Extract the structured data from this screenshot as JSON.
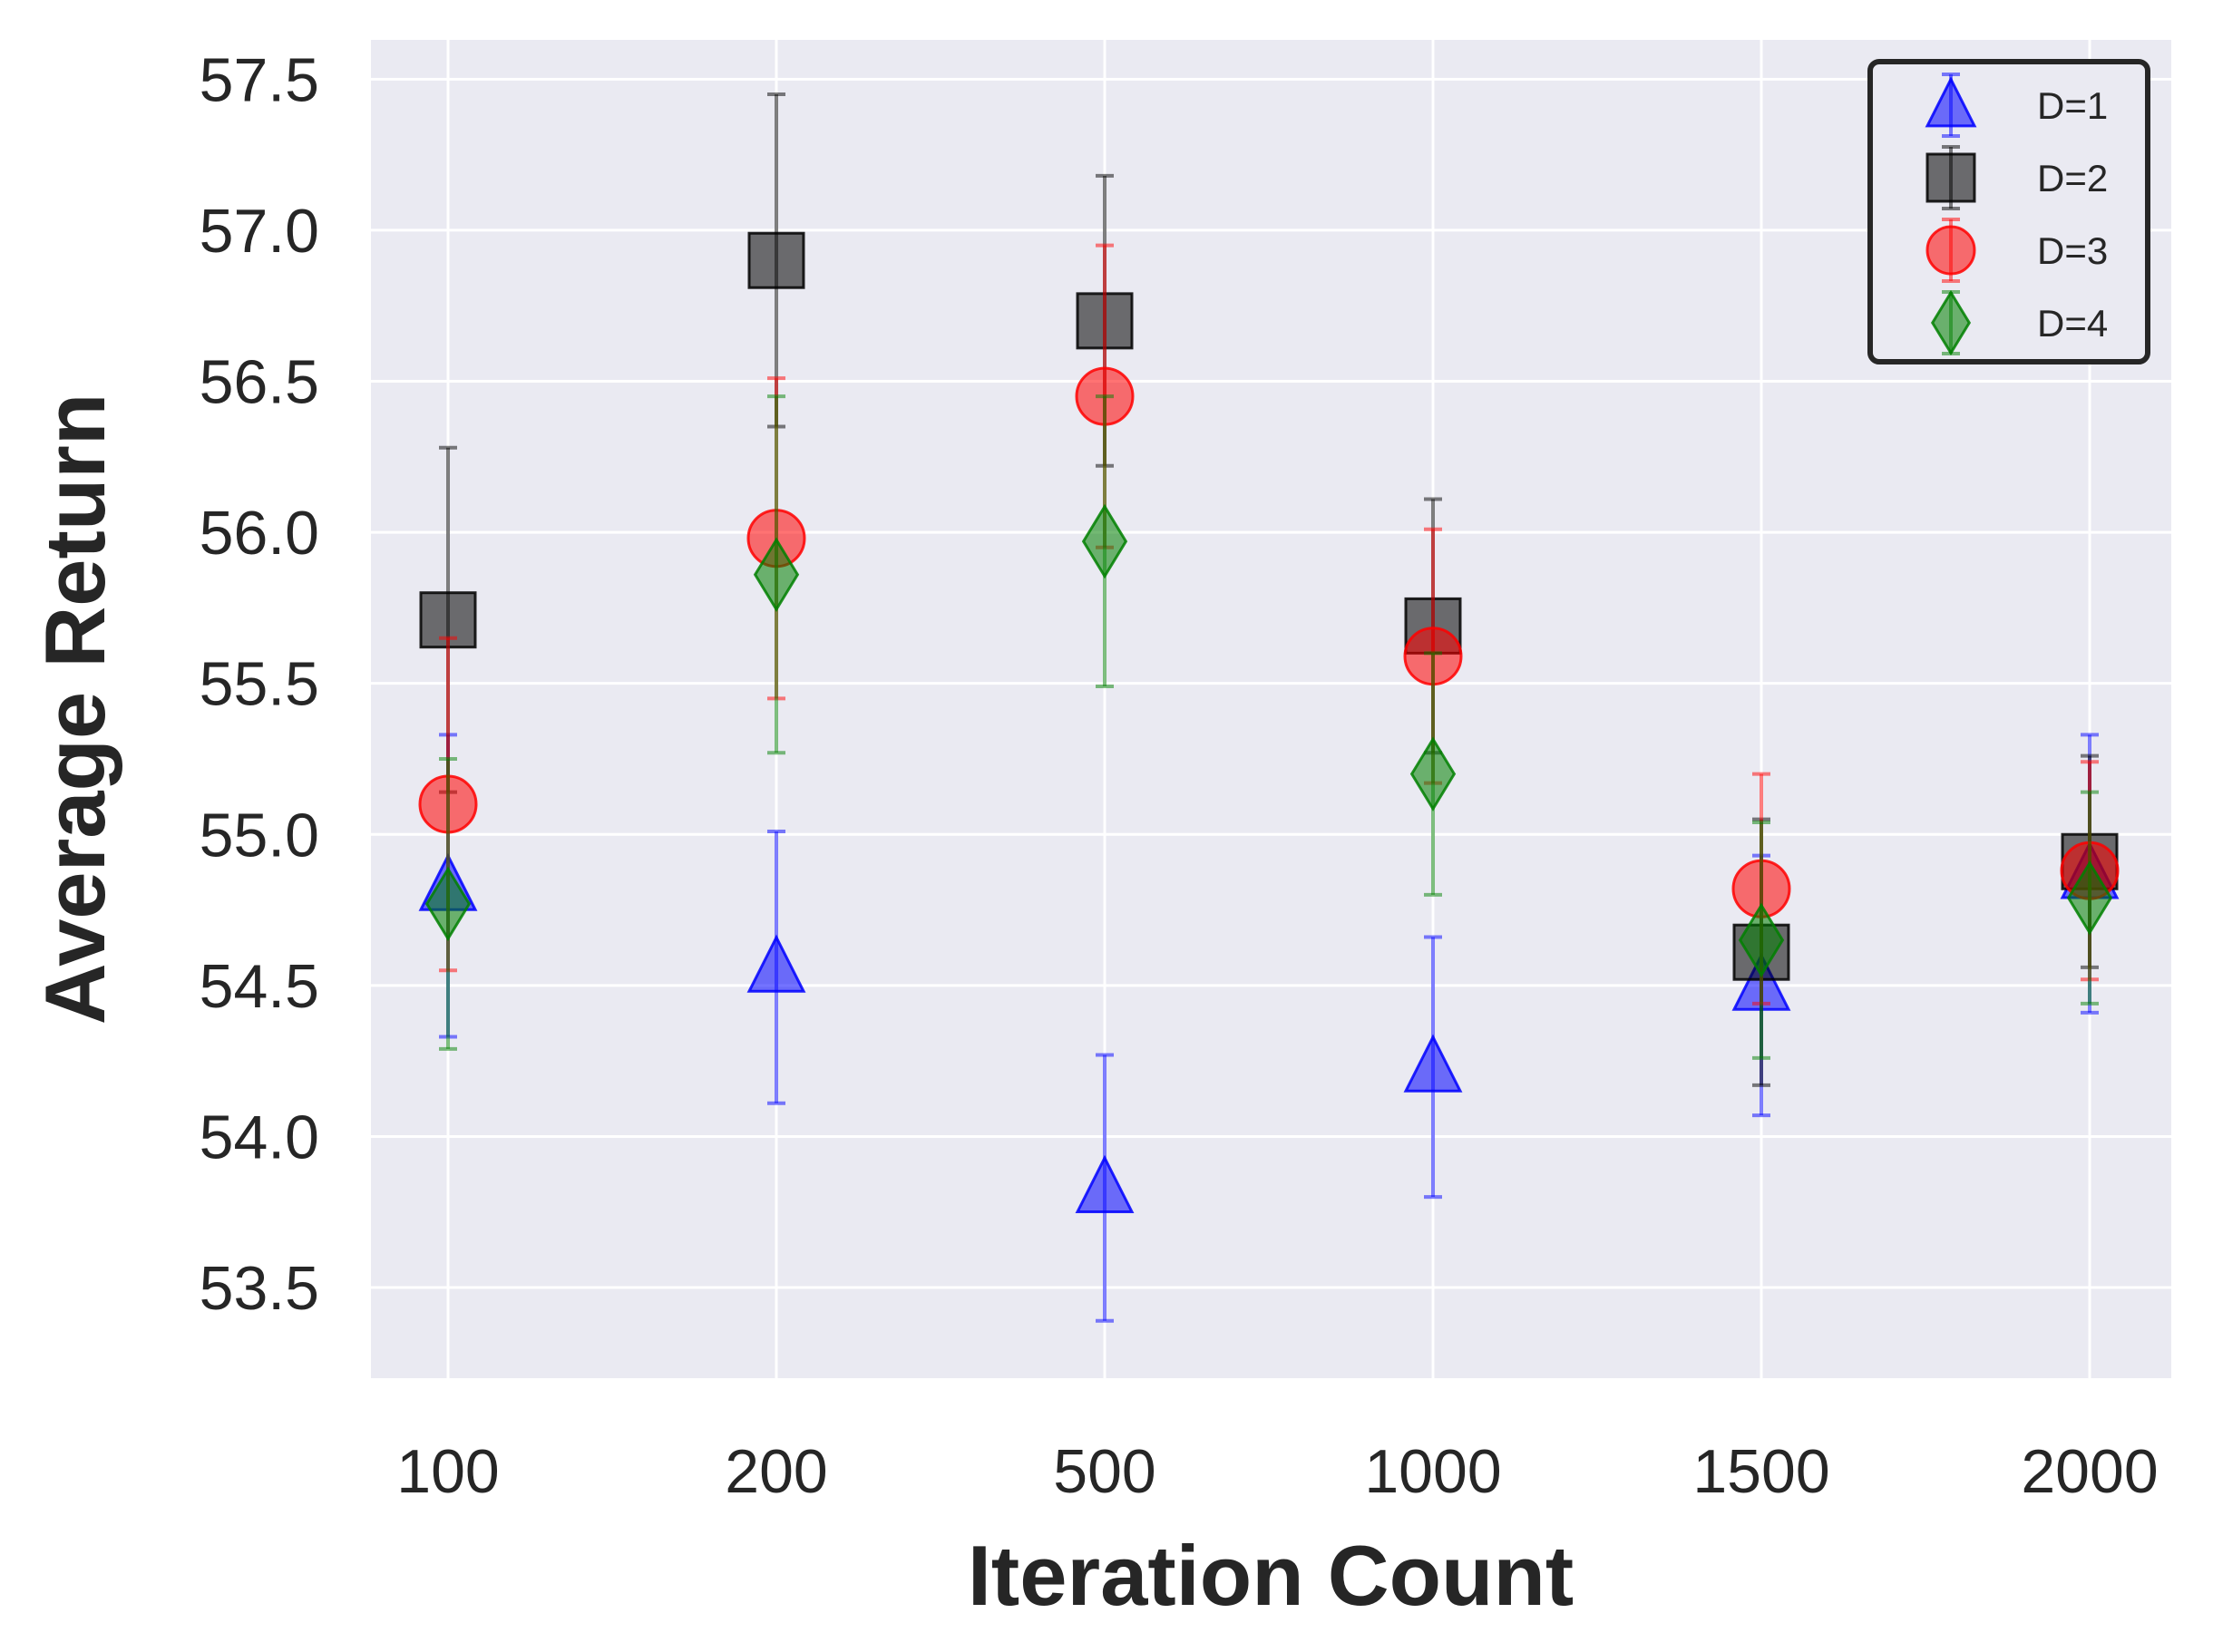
{
  "chart_data": {
    "type": "scatter",
    "title": "",
    "xlabel": "Iteration Count",
    "ylabel": "Average Return",
    "categories": [
      "100",
      "200",
      "500",
      "1000",
      "1500",
      "2000"
    ],
    "ylim": [
      53.2,
      57.63
    ],
    "yticks": [
      "53.5",
      "54.0",
      "54.5",
      "55.0",
      "55.5",
      "56.0",
      "56.5",
      "57.0",
      "57.5"
    ],
    "grid": true,
    "legend_position": "top-right",
    "series": [
      {
        "name": "D=1",
        "marker": "triangle",
        "color": "#0000ff",
        "values": [
          54.83,
          54.56,
          53.83,
          54.23,
          54.5,
          54.87
        ],
        "errors": [
          0.5,
          0.45,
          0.44,
          0.43,
          0.43,
          0.46
        ]
      },
      {
        "name": "D=2",
        "marker": "square",
        "color": "#000000",
        "values": [
          55.71,
          56.9,
          56.7,
          55.69,
          54.61,
          54.91
        ],
        "errors": [
          0.57,
          0.55,
          0.48,
          0.42,
          0.44,
          0.35
        ]
      },
      {
        "name": "D=3",
        "marker": "circle",
        "color": "#ff0000",
        "values": [
          55.1,
          55.98,
          56.45,
          55.59,
          54.82,
          54.88
        ],
        "errors": [
          0.55,
          0.53,
          0.5,
          0.42,
          0.38,
          0.36
        ]
      },
      {
        "name": "D=4",
        "marker": "diamond",
        "color": "#008000",
        "values": [
          54.77,
          55.86,
          55.97,
          55.2,
          54.65,
          54.79
        ],
        "errors": [
          0.48,
          0.59,
          0.48,
          0.4,
          0.39,
          0.35
        ]
      }
    ]
  }
}
